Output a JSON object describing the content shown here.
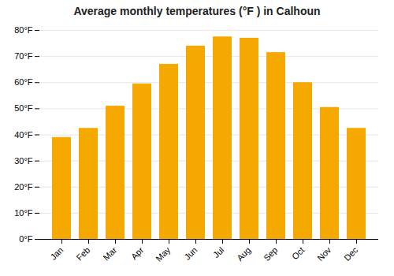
{
  "chart_data": {
    "type": "bar",
    "title": "Average monthly temperatures (°F ) in Calhoun",
    "categories": [
      "Jan",
      "Feb",
      "Mar",
      "Apr",
      "May",
      "Jun",
      "Jul",
      "Aug",
      "Sep",
      "Oct",
      "Nov",
      "Dec"
    ],
    "values": [
      39,
      42.5,
      51,
      59.5,
      67,
      74,
      77.5,
      77,
      71.5,
      60,
      50.5,
      42.5
    ],
    "color": "#F5A800",
    "ylim": [
      0,
      80
    ],
    "yticks": [
      {
        "value": 0,
        "label": "0°F"
      },
      {
        "value": 10,
        "label": "10°F"
      },
      {
        "value": 20,
        "label": "20°F"
      },
      {
        "value": 30,
        "label": "30°F"
      },
      {
        "value": 40,
        "label": "40°F"
      },
      {
        "value": 50,
        "label": "50°F"
      },
      {
        "value": 60,
        "label": "60°F"
      },
      {
        "value": 70,
        "label": "70°F"
      },
      {
        "value": 80,
        "label": "80°F"
      }
    ],
    "grid": true
  }
}
